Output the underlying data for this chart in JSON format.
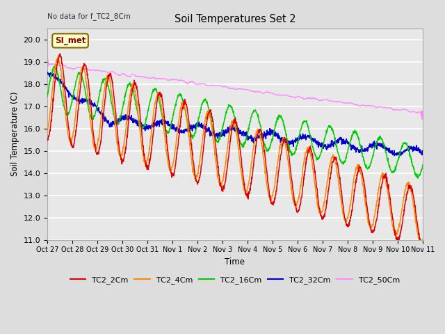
{
  "title": "Soil Temperatures Set 2",
  "no_data_label": "No data for f_TC2_8Cm",
  "ylabel": "Soil Temperature (C)",
  "xlabel": "Time",
  "ylim": [
    11.0,
    20.5
  ],
  "yticks": [
    11.0,
    12.0,
    13.0,
    14.0,
    15.0,
    16.0,
    17.0,
    18.0,
    19.0,
    20.0
  ],
  "xtick_labels": [
    "Oct 27",
    "Oct 28",
    "Oct 29",
    "Oct 30",
    "Oct 31",
    "Nov 1",
    "Nov 2",
    "Nov 3",
    "Nov 4",
    "Nov 5",
    "Nov 6",
    "Nov 7",
    "Nov 8",
    "Nov 9",
    "Nov 10",
    "Nov 11"
  ],
  "series_colors": {
    "TC2_2Cm": "#dd0000",
    "TC2_4Cm": "#ff8800",
    "TC2_16Cm": "#00cc00",
    "TC2_32Cm": "#0000cc",
    "TC2_50Cm": "#ff88ff"
  },
  "annotation_box": "SI_met",
  "annotation_box_bg": "#ffffcc",
  "annotation_box_border": "#886600",
  "annotation_text_color": "#880000",
  "fig_bg": "#dddddd",
  "plot_bg": "#e8e8e8",
  "n_points": 1440,
  "n_days": 15
}
